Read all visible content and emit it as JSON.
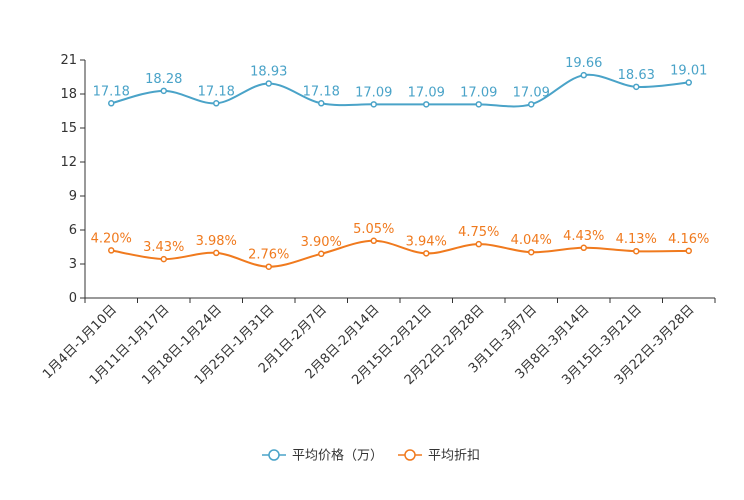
{
  "chart_data": {
    "type": "line",
    "categories": [
      "1月4日-1月10日",
      "1月11日-1月17日",
      "1月18日-1月24日",
      "1月25日-1月31日",
      "2月1日-2月7日",
      "2月8日-2月14日",
      "2月15日-2月21日",
      "2月22日-2月28日",
      "3月1日-3月7日",
      "3月8日-3月14日",
      "3月15日-3月21日",
      "3月22日-3月28日"
    ],
    "ylim": [
      0,
      21
    ],
    "yticks": [
      0,
      3,
      6,
      9,
      12,
      15,
      18,
      21
    ],
    "grid": false,
    "legend_position": "bottom",
    "series": [
      {
        "name": "平均价格（万）",
        "color": "#4aa3c8",
        "values": [
          17.18,
          18.28,
          17.18,
          18.93,
          17.18,
          17.09,
          17.09,
          17.09,
          17.09,
          19.66,
          18.63,
          19.01
        ],
        "labels": [
          "17.18",
          "18.28",
          "17.18",
          "18.93",
          "17.18",
          "17.09",
          "17.09",
          "17.09",
          "17.09",
          "19.66",
          "18.63",
          "19.01"
        ]
      },
      {
        "name": "平均折扣",
        "color": "#f07a1e",
        "values": [
          4.2,
          3.43,
          3.98,
          2.76,
          3.9,
          5.05,
          3.94,
          4.75,
          4.04,
          4.43,
          4.13,
          4.16
        ],
        "labels": [
          "4.20%",
          "3.43%",
          "3.98%",
          "2.76%",
          "3.90%",
          "5.05%",
          "3.94%",
          "4.75%",
          "4.04%",
          "4.43%",
          "4.13%",
          "4.16%"
        ]
      }
    ]
  }
}
